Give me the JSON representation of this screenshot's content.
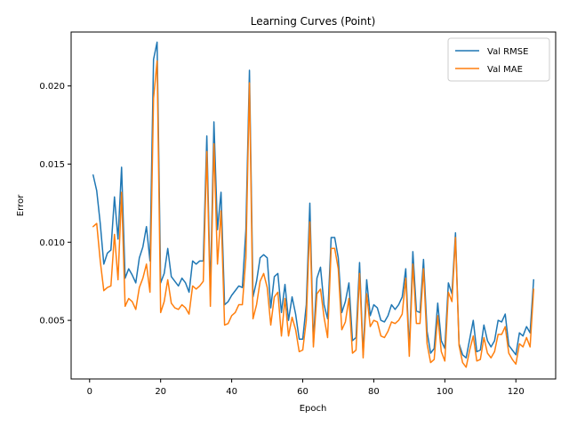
{
  "chart_data": {
    "type": "line",
    "title": "Learning Curves (Point)",
    "xlabel": "Epoch",
    "ylabel": "Error",
    "xlim": [
      -5.2,
      131.2
    ],
    "ylim": [
      0.00125,
      0.02345
    ],
    "xticks": [
      0,
      20,
      40,
      60,
      80,
      100,
      120
    ],
    "xtick_labels": [
      "0",
      "20",
      "40",
      "60",
      "80",
      "100",
      "120"
    ],
    "yticks": [
      0.005,
      0.01,
      0.015,
      0.02
    ],
    "ytick_labels": [
      "0.005",
      "0.010",
      "0.015",
      "0.020"
    ],
    "grid": false,
    "legend_position": "top-right",
    "x": [
      1,
      2,
      3,
      4,
      5,
      6,
      7,
      8,
      9,
      10,
      11,
      12,
      13,
      14,
      15,
      16,
      17,
      18,
      19,
      20,
      21,
      22,
      23,
      24,
      25,
      26,
      27,
      28,
      29,
      30,
      31,
      32,
      33,
      34,
      35,
      36,
      37,
      38,
      39,
      40,
      41,
      42,
      43,
      44,
      45,
      46,
      47,
      48,
      49,
      50,
      51,
      52,
      53,
      54,
      55,
      56,
      57,
      58,
      59,
      60,
      61,
      62,
      63,
      64,
      65,
      66,
      67,
      68,
      69,
      70,
      71,
      72,
      73,
      74,
      75,
      76,
      77,
      78,
      79,
      80,
      81,
      82,
      83,
      84,
      85,
      86,
      87,
      88,
      89,
      90,
      91,
      92,
      93,
      94,
      95,
      96,
      97,
      98,
      99,
      100,
      101,
      102,
      103,
      104,
      105,
      106,
      107,
      108,
      109,
      110,
      111,
      112,
      113,
      114,
      115,
      116,
      117,
      118,
      119,
      120,
      121,
      122,
      123,
      124,
      125
    ],
    "series": [
      {
        "name": "Val RMSE",
        "color": "#1f77b4",
        "values": [
          0.0143,
          0.0133,
          0.0112,
          0.0086,
          0.0093,
          0.0095,
          0.0129,
          0.0102,
          0.0148,
          0.0077,
          0.0083,
          0.0079,
          0.0074,
          0.009,
          0.0097,
          0.011,
          0.0088,
          0.0217,
          0.0228,
          0.0074,
          0.008,
          0.0096,
          0.0078,
          0.0075,
          0.0072,
          0.0077,
          0.0074,
          0.0068,
          0.0088,
          0.0086,
          0.0088,
          0.0088,
          0.0168,
          0.0067,
          0.0177,
          0.0108,
          0.0132,
          0.006,
          0.0062,
          0.0066,
          0.0069,
          0.0072,
          0.0071,
          0.0108,
          0.021,
          0.0065,
          0.0075,
          0.009,
          0.0092,
          0.009,
          0.0058,
          0.0078,
          0.008,
          0.0055,
          0.0073,
          0.005,
          0.0065,
          0.0054,
          0.0038,
          0.0038,
          0.006,
          0.0125,
          0.0036,
          0.0077,
          0.0084,
          0.006,
          0.0051,
          0.0103,
          0.0103,
          0.009,
          0.0055,
          0.0062,
          0.0074,
          0.0037,
          0.0039,
          0.0087,
          0.0028,
          0.0076,
          0.0053,
          0.006,
          0.0058,
          0.005,
          0.0049,
          0.0053,
          0.006,
          0.0057,
          0.006,
          0.0065,
          0.0083,
          0.0031,
          0.0094,
          0.0056,
          0.0055,
          0.0089,
          0.0043,
          0.0029,
          0.0032,
          0.0061,
          0.0037,
          0.0032,
          0.0074,
          0.0067,
          0.0106,
          0.0035,
          0.0028,
          0.0026,
          0.0038,
          0.005,
          0.003,
          0.0031,
          0.0047,
          0.0037,
          0.0033,
          0.0037,
          0.005,
          0.0049,
          0.0054,
          0.0034,
          0.0031,
          0.0028,
          0.0042,
          0.004,
          0.0046,
          0.0042,
          0.0076
        ]
      },
      {
        "name": "Val MAE",
        "color": "#ff7f0e",
        "values": [
          0.011,
          0.0112,
          0.0088,
          0.0069,
          0.0071,
          0.0072,
          0.0105,
          0.0076,
          0.0132,
          0.0059,
          0.0064,
          0.0062,
          0.0057,
          0.0071,
          0.0077,
          0.0086,
          0.0068,
          0.0192,
          0.0216,
          0.0055,
          0.0062,
          0.0076,
          0.0061,
          0.0058,
          0.0057,
          0.006,
          0.0058,
          0.0054,
          0.0072,
          0.007,
          0.0072,
          0.0075,
          0.0158,
          0.0059,
          0.0163,
          0.0086,
          0.012,
          0.0047,
          0.0048,
          0.0053,
          0.0055,
          0.006,
          0.006,
          0.009,
          0.0202,
          0.0051,
          0.006,
          0.0075,
          0.008,
          0.0071,
          0.0047,
          0.0065,
          0.0068,
          0.004,
          0.0064,
          0.004,
          0.0052,
          0.0044,
          0.003,
          0.0031,
          0.005,
          0.0113,
          0.0033,
          0.0067,
          0.007,
          0.0052,
          0.0039,
          0.0096,
          0.0096,
          0.0083,
          0.0044,
          0.0049,
          0.0064,
          0.0029,
          0.0031,
          0.008,
          0.0026,
          0.0067,
          0.0046,
          0.005,
          0.0049,
          0.004,
          0.0039,
          0.0043,
          0.0049,
          0.0048,
          0.005,
          0.0054,
          0.0077,
          0.0027,
          0.0086,
          0.0048,
          0.0048,
          0.0083,
          0.0035,
          0.0023,
          0.0025,
          0.0053,
          0.003,
          0.0024,
          0.0068,
          0.0062,
          0.0103,
          0.0034,
          0.0023,
          0.002,
          0.0031,
          0.004,
          0.0024,
          0.0025,
          0.0039,
          0.0029,
          0.0026,
          0.003,
          0.0041,
          0.0041,
          0.0046,
          0.0029,
          0.0025,
          0.0022,
          0.0035,
          0.0033,
          0.0039,
          0.0033,
          0.007
        ]
      }
    ]
  }
}
